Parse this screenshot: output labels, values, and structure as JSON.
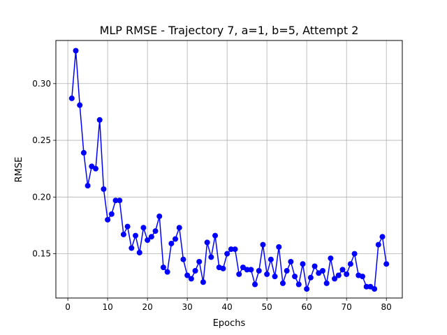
{
  "chart_data": {
    "type": "line",
    "title": "MLP RMSE - Trajectory 7, a=1, b=5, Attempt 2",
    "xlabel": "Epochs",
    "ylabel": "RMSE",
    "xlim": [
      -3,
      84
    ],
    "ylim": [
      0.111,
      0.338
    ],
    "xticks": [
      0,
      10,
      20,
      30,
      40,
      50,
      60,
      70,
      80
    ],
    "yticks": [
      0.15,
      0.2,
      0.25,
      0.3
    ],
    "ytick_labels": [
      "0.15",
      "0.20",
      "0.25",
      "0.30"
    ],
    "grid": true,
    "legend": "none",
    "series": [
      {
        "color": "#0000ff",
        "marker": "circle",
        "x": [
          1,
          2,
          3,
          4,
          5,
          6,
          7,
          8,
          9,
          10,
          11,
          12,
          13,
          14,
          15,
          16,
          17,
          18,
          19,
          20,
          21,
          22,
          23,
          24,
          25,
          26,
          27,
          28,
          29,
          30,
          31,
          32,
          33,
          34,
          35,
          36,
          37,
          38,
          39,
          40,
          41,
          42,
          43,
          44,
          45,
          46,
          47,
          48,
          49,
          50,
          51,
          52,
          53,
          54,
          55,
          56,
          57,
          58,
          59,
          60,
          61,
          62,
          63,
          64,
          65,
          66,
          67,
          68,
          69,
          70,
          71,
          72,
          73,
          74,
          75,
          76,
          77,
          78,
          79,
          80
        ],
        "y": [
          0.287,
          0.329,
          0.281,
          0.239,
          0.21,
          0.227,
          0.225,
          0.268,
          0.207,
          0.18,
          0.185,
          0.197,
          0.197,
          0.167,
          0.174,
          0.155,
          0.166,
          0.151,
          0.173,
          0.162,
          0.165,
          0.17,
          0.183,
          0.138,
          0.134,
          0.159,
          0.163,
          0.173,
          0.145,
          0.131,
          0.128,
          0.135,
          0.143,
          0.125,
          0.16,
          0.147,
          0.166,
          0.138,
          0.137,
          0.15,
          0.154,
          0.154,
          0.132,
          0.138,
          0.136,
          0.136,
          0.123,
          0.135,
          0.158,
          0.132,
          0.145,
          0.13,
          0.156,
          0.124,
          0.135,
          0.143,
          0.13,
          0.123,
          0.141,
          0.119,
          0.129,
          0.139,
          0.133,
          0.135,
          0.124,
          0.146,
          0.128,
          0.131,
          0.136,
          0.132,
          0.141,
          0.15,
          0.131,
          0.13,
          0.121,
          0.121,
          0.119,
          0.158,
          0.165,
          0.141
        ]
      }
    ]
  }
}
